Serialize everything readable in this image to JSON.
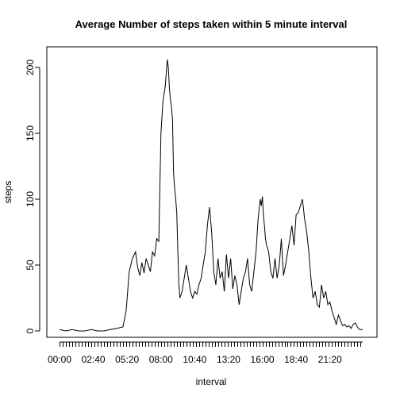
{
  "chart_data": {
    "type": "line",
    "title": "Average Number of steps taken within 5 minute interval",
    "xlabel": "interval",
    "ylabel": "steps",
    "ylim": [
      -8,
      215
    ],
    "y_ticks": [
      0,
      50,
      100,
      150,
      200
    ],
    "x_tick_labels": [
      "00:00",
      "02:40",
      "05:20",
      "08:00",
      "10:40",
      "13:20",
      "16:00",
      "18:40",
      "21:20"
    ],
    "x_tick_label_interval_index": [
      0,
      32,
      64,
      96,
      128,
      160,
      192,
      224,
      256
    ],
    "x_minor_tick_every": 3,
    "grid": false,
    "legend": "none",
    "series": [
      {
        "x": [
          0,
          6,
          12,
          18,
          24,
          30,
          36,
          42,
          48,
          54,
          60,
          63,
          66,
          69,
          72,
          74,
          76,
          78,
          80,
          82,
          84,
          86,
          88,
          90,
          92,
          94,
          96,
          98,
          100,
          101,
          102,
          103,
          104,
          105,
          106,
          107,
          108,
          109,
          110,
          111,
          112,
          113,
          114,
          116,
          118,
          120,
          122,
          124,
          126,
          128,
          130,
          132,
          134,
          136,
          138,
          140,
          142,
          144,
          146,
          148,
          150,
          152,
          154,
          156,
          158,
          160,
          162,
          164,
          166,
          168,
          170,
          172,
          174,
          176,
          178,
          180,
          182,
          184,
          186,
          188,
          190,
          191,
          192,
          193,
          194,
          195,
          196,
          198,
          200,
          202,
          204,
          206,
          208,
          210,
          212,
          214,
          216,
          218,
          220,
          222,
          224,
          226,
          228,
          230,
          232,
          234,
          236,
          238,
          240,
          242,
          244,
          246,
          248,
          250,
          252,
          254,
          256,
          258,
          260,
          262,
          264,
          266,
          268,
          270,
          272,
          274,
          276,
          278,
          280,
          282,
          284,
          287
        ],
        "y": [
          1,
          0,
          1,
          0,
          0,
          1,
          0,
          0,
          1,
          2,
          3,
          15,
          45,
          55,
          60,
          48,
          42,
          52,
          44,
          55,
          50,
          45,
          60,
          57,
          70,
          68,
          150,
          175,
          185,
          195,
          206,
          200,
          185,
          175,
          170,
          160,
          120,
          108,
          100,
          90,
          60,
          35,
          25,
          30,
          40,
          50,
          40,
          30,
          25,
          30,
          28,
          35,
          40,
          50,
          60,
          80,
          94,
          75,
          45,
          35,
          55,
          40,
          45,
          30,
          58,
          40,
          55,
          32,
          42,
          35,
          20,
          30,
          40,
          45,
          55,
          35,
          30,
          45,
          60,
          85,
          100,
          95,
          102,
          88,
          80,
          70,
          65,
          60,
          45,
          40,
          55,
          40,
          50,
          70,
          42,
          50,
          60,
          70,
          80,
          65,
          88,
          90,
          95,
          100,
          85,
          75,
          60,
          40,
          25,
          30,
          20,
          18,
          35,
          25,
          30,
          20,
          22,
          15,
          10,
          5,
          12,
          8,
          4,
          5,
          3,
          4,
          2,
          5,
          6,
          3,
          1,
          1
        ]
      }
    ]
  }
}
